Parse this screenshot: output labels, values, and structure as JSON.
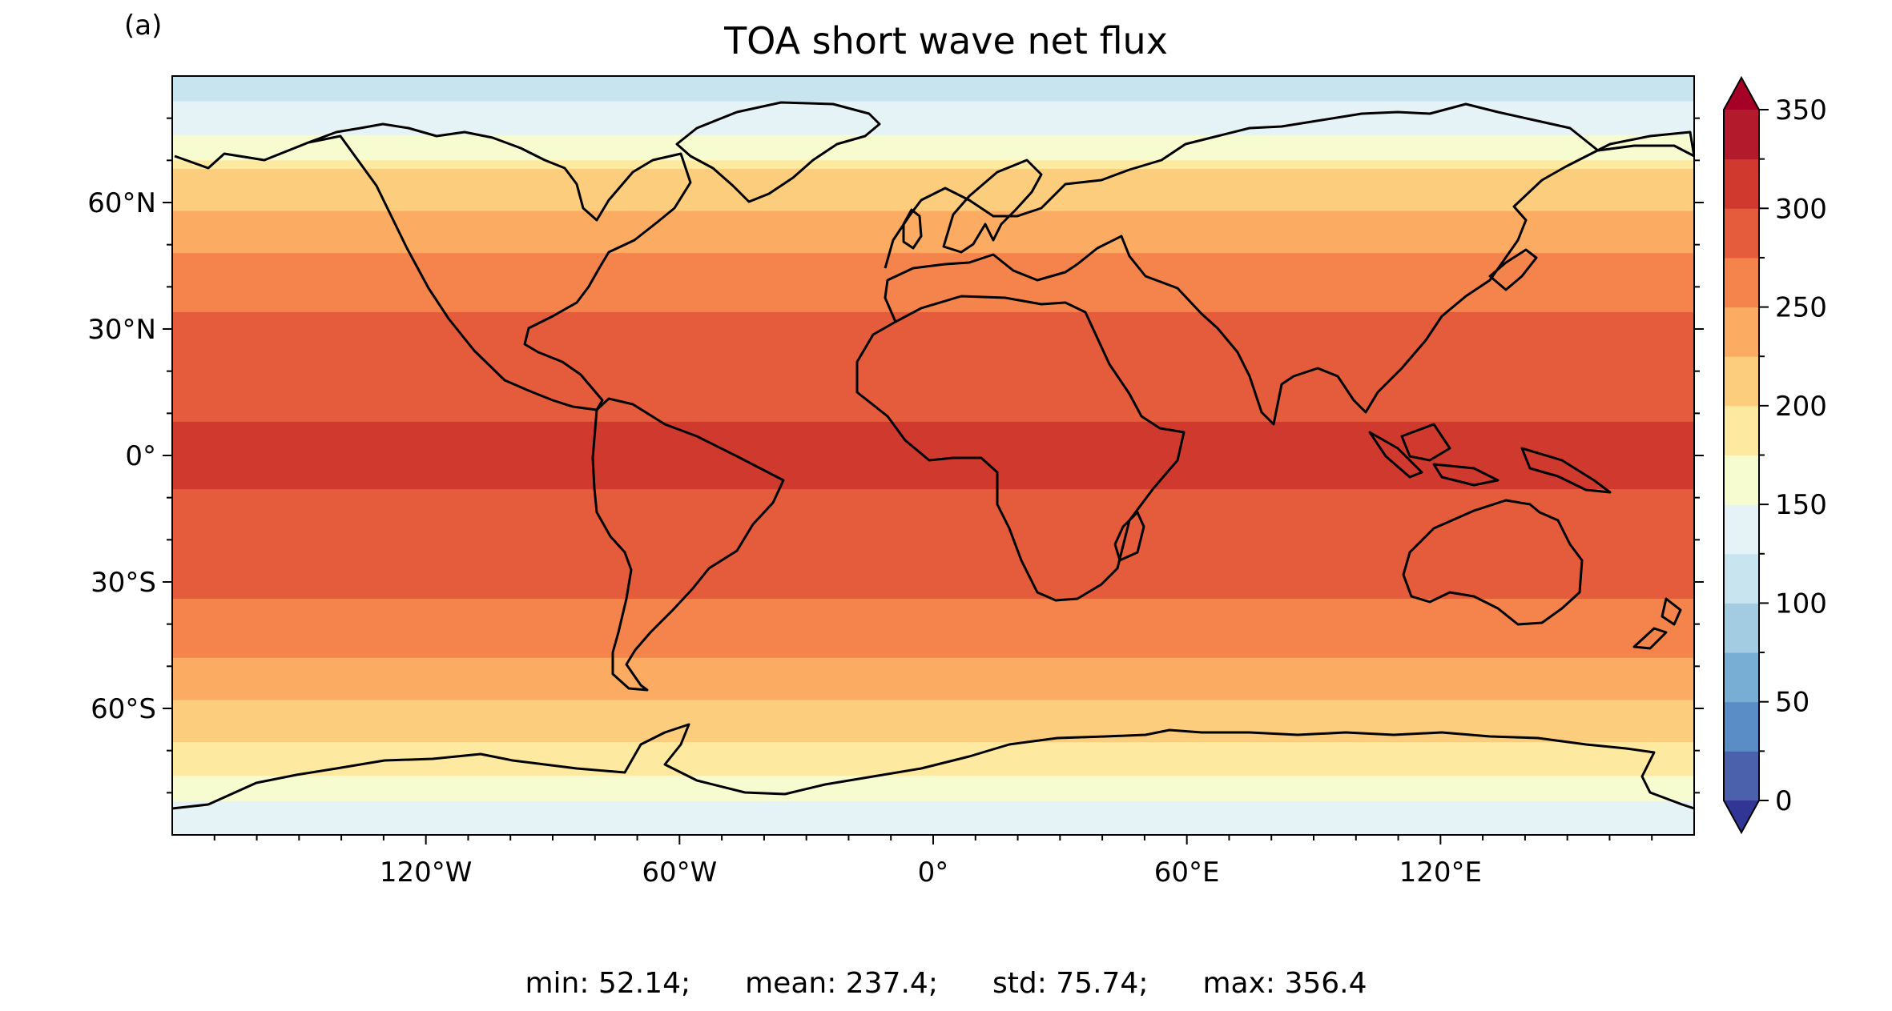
{
  "panel_label": "(a)",
  "title": "TOA short wave net flux",
  "map": {
    "projection": "PlateCarree",
    "lon_ticks": [
      -120,
      -60,
      0,
      60,
      120
    ],
    "lon_tick_labels": [
      "120°W",
      "60°W",
      "0°",
      "60°E",
      "120°E"
    ],
    "lat_ticks": [
      60,
      30,
      0,
      -30,
      -60
    ],
    "lat_tick_labels": [
      "60°N",
      "30°N",
      "0°",
      "30°S",
      "60°S"
    ],
    "lat_range": [
      -90,
      90
    ],
    "lon_range": [
      -180,
      180
    ]
  },
  "colorbar": {
    "colormap": "RdYlBu_r",
    "levels": [
      0,
      25,
      50,
      75,
      100,
      125,
      150,
      175,
      200,
      225,
      250,
      275,
      300,
      325,
      350
    ],
    "tick_values": [
      0,
      50,
      100,
      150,
      200,
      250,
      300,
      350
    ],
    "tick_labels": [
      "0",
      "50",
      "100",
      "150",
      "200",
      "250",
      "300",
      "350"
    ],
    "extend": "both",
    "colors": [
      "#4b61ab",
      "#5a8dc6",
      "#78aed3",
      "#a3cce2",
      "#c8e4ef",
      "#e6f3f6",
      "#f6fbd0",
      "#fee9a0",
      "#fdcd7e",
      "#fbab62",
      "#f5844c",
      "#e45c3c",
      "#d03a2e",
      "#b31a2b"
    ],
    "under_color": "#313695",
    "over_color": "#a50026"
  },
  "stats": {
    "min": "min: 52.14;",
    "mean": "mean: 237.4;",
    "std": "std: 75.74;",
    "max": "max: 356.4"
  }
}
